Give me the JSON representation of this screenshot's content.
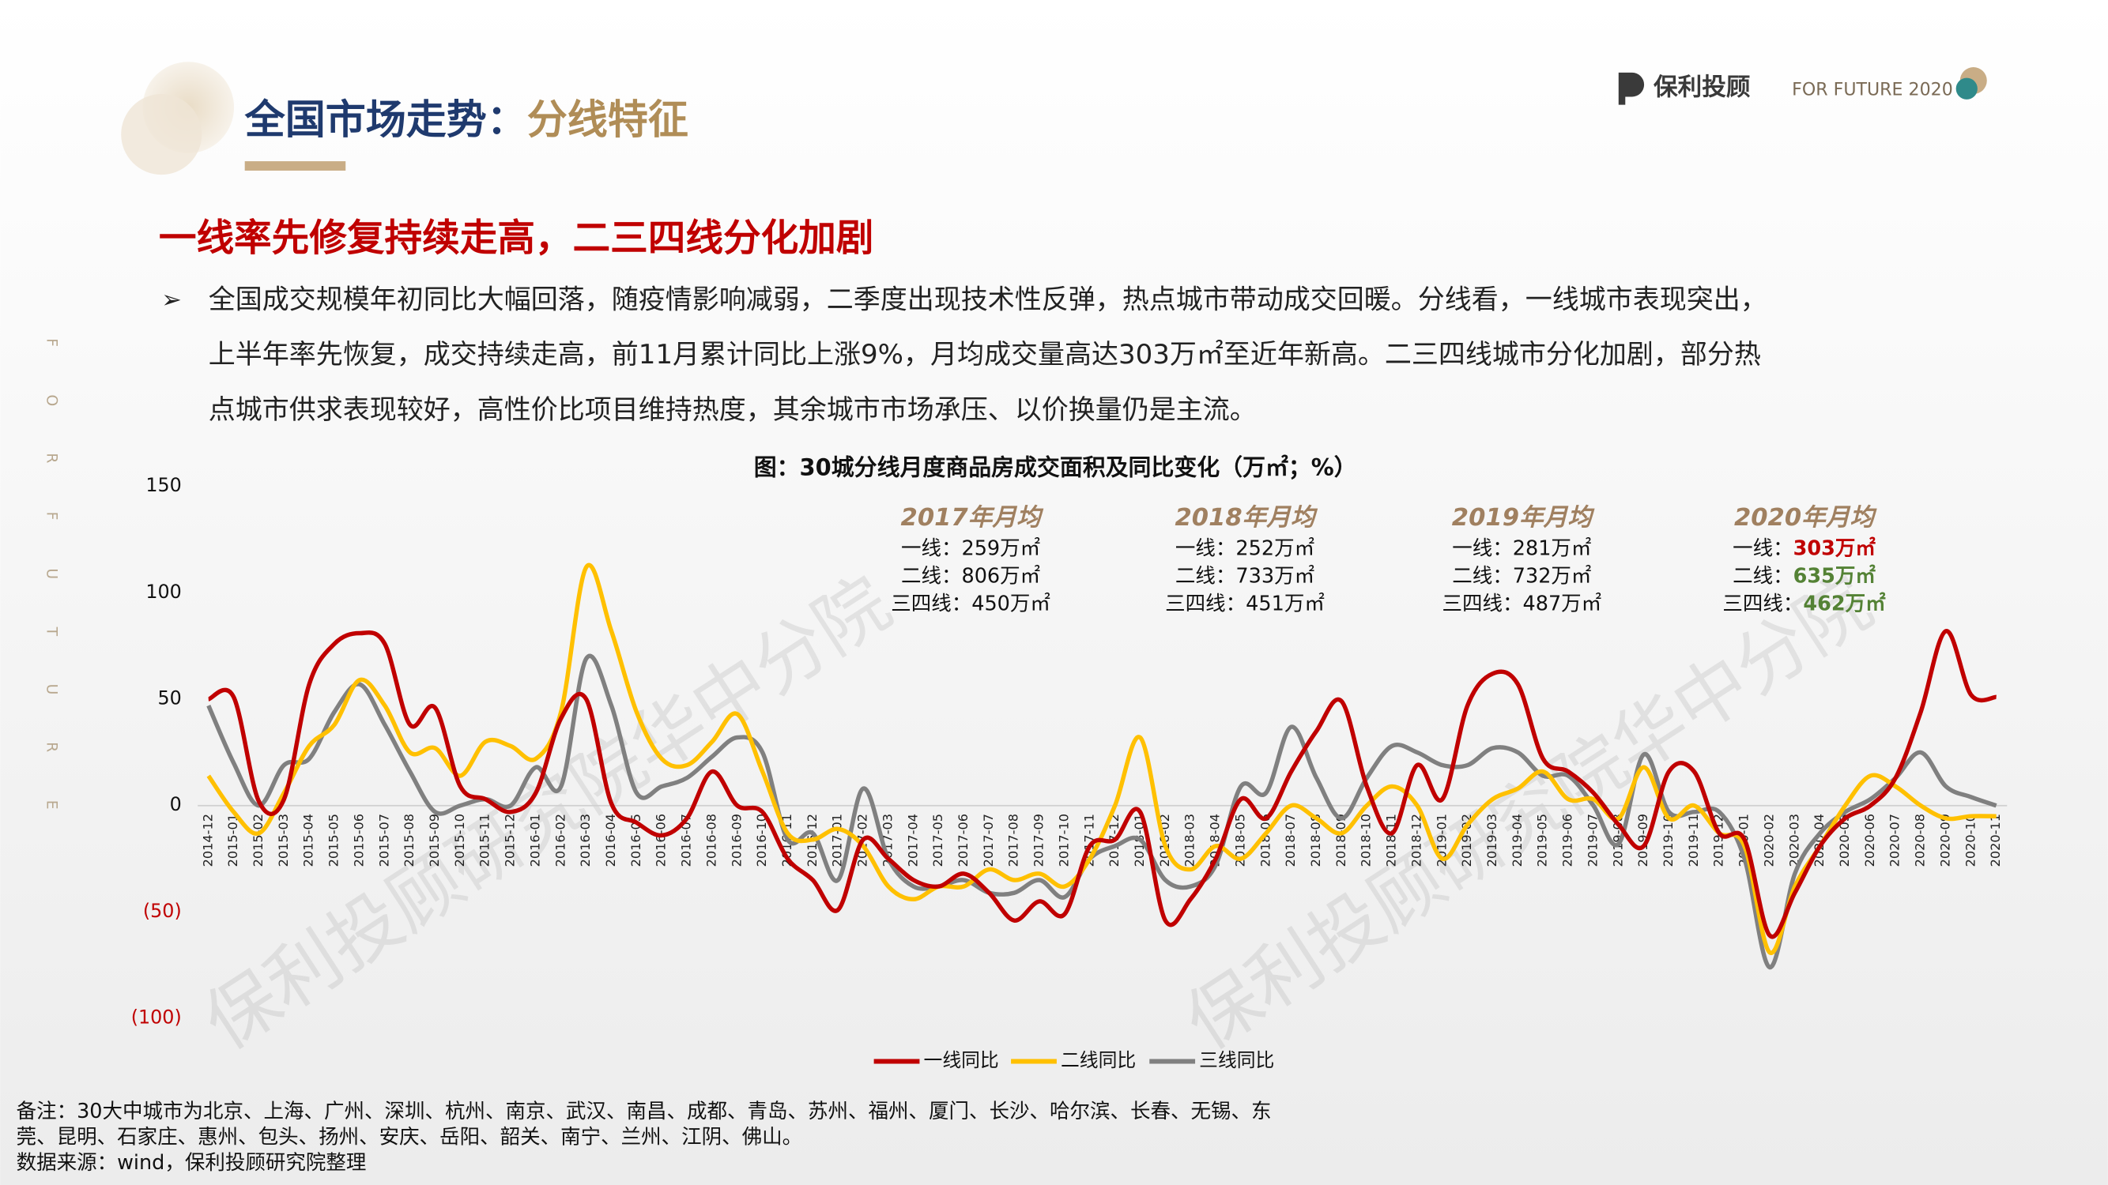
{
  "header": {
    "title_main": "全国市场走势：",
    "title_accent": "分线特征",
    "logo_text": "保利投顾",
    "logo_tag": "FOR FUTURE 2020",
    "side_letters": [
      "F",
      "O",
      "R",
      "F",
      "U",
      "T",
      "U",
      "R",
      "E"
    ]
  },
  "subtitle": "一线率先修复持续走高，二三四线分化加剧",
  "bullet": {
    "marker": "➢",
    "lines": [
      "全国成交规模年初同比大幅回落，随疫情影响减弱，二季度出现技术性反弹，热点城市带动成交回暖。分线看，一线城市表现突出，",
      "上半年率先恢复，成交持续走高，前11月累计同比上涨9%，月均成交量高达303万㎡至近年新高。二三四线城市分化加剧，部分热",
      "点城市供求表现较好，高性价比项目维持热度，其余城市市场承压、以价换量仍是主流。"
    ]
  },
  "watermark": "保利投顾研究院华中分院",
  "chart_data": {
    "type": "line",
    "title": "图：30城分线月度商品房成交面积及同比变化（万㎡；%）",
    "categories": [
      "2014-12",
      "2015-01",
      "2015-02",
      "2015-03",
      "2015-04",
      "2015-05",
      "2015-06",
      "2015-07",
      "2015-08",
      "2015-09",
      "2015-10",
      "2015-11",
      "2015-12",
      "2016-01",
      "2016-02",
      "2016-03",
      "2016-04",
      "2016-05",
      "2016-06",
      "2016-07",
      "2016-08",
      "2016-09",
      "2016-10",
      "2016-11",
      "2016-12",
      "2017-01",
      "2017-02",
      "2017-03",
      "2017-04",
      "2017-05",
      "2017-06",
      "2017-07",
      "2017-08",
      "2017-09",
      "2017-10",
      "2017-11",
      "2017-12",
      "2018-01",
      "2018-02",
      "2018-03",
      "2018-04",
      "2018-05",
      "2018-06",
      "2018-07",
      "2018-08",
      "2018-09",
      "2018-10",
      "2018-11",
      "2018-12",
      "2019-01",
      "2019-02",
      "2019-03",
      "2019-04",
      "2019-05",
      "2019-06",
      "2019-07",
      "2019-08",
      "2019-09",
      "2019-10",
      "2019-11",
      "2019-12",
      "2020-01",
      "2020-02",
      "2020-03",
      "2020-04",
      "2020-05",
      "2020-06",
      "2020-07",
      "2020-08",
      "2020-09",
      "2020-10",
      "2020-11"
    ],
    "series": [
      {
        "name": "一线同比",
        "color": "#c00000",
        "values": [
          50,
          51,
          2,
          3,
          57,
          76,
          81,
          76,
          38,
          46,
          9,
          3,
          -3,
          6,
          41,
          50,
          1,
          -8,
          -14,
          -6,
          16,
          0,
          -3,
          -25,
          -35,
          -49,
          -16,
          -25,
          -35,
          -38,
          -32,
          -41,
          -54,
          -45,
          -51,
          -19,
          -16,
          -3,
          -54,
          -44,
          -25,
          3,
          -6,
          16,
          35,
          49,
          9,
          -13,
          19,
          3,
          47,
          62,
          57,
          22,
          16,
          6,
          -9,
          -19,
          16,
          16,
          -13,
          -16,
          -61,
          -41,
          -19,
          -6,
          0,
          13,
          44,
          82,
          52,
          51
        ]
      },
      {
        "name": "二线同比",
        "color": "#ffc000",
        "values": [
          14,
          -3,
          -13,
          6,
          28,
          38,
          59,
          47,
          25,
          27,
          14,
          30,
          28,
          22,
          44,
          112,
          82,
          44,
          22,
          19,
          30,
          43,
          16,
          -13,
          -16,
          -11,
          -19,
          -38,
          -44,
          -38,
          -38,
          -30,
          -35,
          -32,
          -38,
          -25,
          0,
          32,
          -19,
          -30,
          -19,
          -25,
          -13,
          0,
          -6,
          -13,
          0,
          9,
          0,
          -25,
          -9,
          3,
          8,
          16,
          3,
          3,
          -6,
          18,
          -6,
          0,
          -13,
          -19,
          -69,
          -38,
          -19,
          0,
          14,
          9,
          0,
          -6,
          -5,
          -5
        ]
      },
      {
        "name": "三线同比",
        "color": "#808080",
        "values": [
          47,
          20,
          0,
          19,
          22,
          44,
          57,
          38,
          16,
          -3,
          0,
          3,
          0,
          18,
          9,
          69,
          47,
          6,
          9,
          13,
          23,
          32,
          25,
          -16,
          -13,
          -35,
          8,
          -25,
          -38,
          -38,
          -35,
          -41,
          -41,
          -35,
          -43,
          -25,
          -19,
          -16,
          -35,
          -38,
          -28,
          9,
          6,
          37,
          13,
          -6,
          13,
          28,
          25,
          19,
          19,
          27,
          25,
          14,
          14,
          0,
          -18,
          24,
          -3,
          -3,
          -3,
          -25,
          -76,
          -32,
          -13,
          -3,
          3,
          13,
          25,
          9,
          4,
          0
        ]
      }
    ],
    "ylim": [
      -100,
      150
    ],
    "yticks": [
      150,
      100,
      50,
      0,
      {
        "value": -50,
        "label": "(50)"
      },
      {
        "value": -100,
        "label": "(100)"
      }
    ],
    "legend": "bottom",
    "annotations": [
      {
        "title": "2017年月均",
        "lines": [
          {
            "label": "一线：",
            "value": "259万㎡"
          },
          {
            "label": "二线：",
            "value": "806万㎡"
          },
          {
            "label": "三四线：",
            "value": "450万㎡"
          }
        ]
      },
      {
        "title": "2018年月均",
        "lines": [
          {
            "label": "一线：",
            "value": "252万㎡"
          },
          {
            "label": "二线：",
            "value": "733万㎡"
          },
          {
            "label": "三四线：",
            "value": "451万㎡"
          }
        ]
      },
      {
        "title": "2019年月均",
        "lines": [
          {
            "label": "一线：",
            "value": "281万㎡"
          },
          {
            "label": "二线：",
            "value": "732万㎡"
          },
          {
            "label": "三四线：",
            "value": "487万㎡"
          }
        ]
      },
      {
        "title": "2020年月均",
        "lines": [
          {
            "label": "一线：",
            "value": "303万㎡",
            "color": "#c00000"
          },
          {
            "label": "二线：",
            "value": "635万㎡",
            "color": "#548235"
          },
          {
            "label": "三四线：",
            "value": "462万㎡",
            "color": "#548235"
          }
        ]
      }
    ]
  },
  "notes": [
    "备注：30大中城市为北京、上海、广州、深圳、杭州、南京、武汉、南昌、成都、青岛、苏州、福州、厦门、长沙、哈尔滨、长春、无锡、东",
    "莞、昆明、石家庄、惠州、包头、扬州、安庆、岳阳、韶关、南宁、兰州、江阴、佛山。",
    "数据来源：wind，保利投顾研究院整理"
  ]
}
